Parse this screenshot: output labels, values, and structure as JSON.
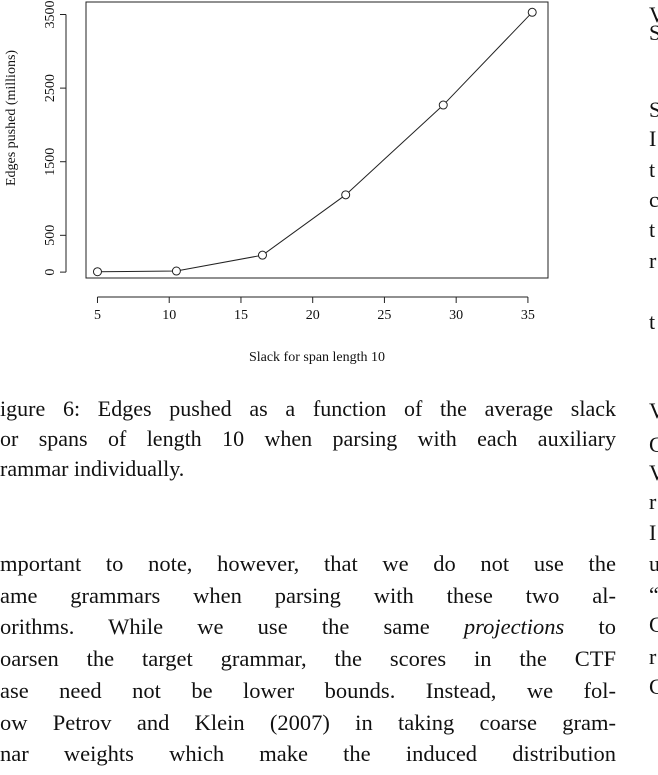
{
  "chart_data": {
    "type": "line",
    "xlabel": "Slack for span length 10",
    "ylabel": "Edges pushed (millions)",
    "x": [
      5,
      10.5,
      16.5,
      22.3,
      29.1,
      35.3
    ],
    "y": [
      5,
      15,
      230,
      1050,
      2270,
      3530
    ],
    "xlim": [
      4.2,
      36.4
    ],
    "ylim": [
      -80,
      3670
    ],
    "xticks": [
      "5",
      "10",
      "15",
      "20",
      "25",
      "30",
      "35"
    ],
    "xtick_values": [
      5,
      10,
      15,
      20,
      25,
      30,
      35
    ],
    "yticks": [
      "0",
      "500",
      "1500",
      "2500",
      "3500"
    ],
    "ytick_values": [
      0,
      500,
      1500,
      2500,
      3500
    ],
    "marker": "open-circle",
    "grid": false,
    "legend": "none"
  },
  "caption": {
    "lines": [
      "igure 6: Edges pushed as a function of the average slack",
      "or spans of length 10 when parsing with each auxiliary",
      "rammar individually."
    ]
  },
  "body": {
    "line1": "mportant to note, however, that we do not use the",
    "line2": "ame grammars when parsing with these two al-",
    "line3_a": "orithms.  While we use the same ",
    "line3_em": "projections",
    "line3_b": " to",
    "line4": "oarsen the target grammar, the scores in the CTF",
    "line5": "ase need not be lower bounds.  Instead, we fol-",
    "line6": "ow Petrov and Klein (2007) in taking coarse gram-",
    "line7": "nar weights which make the induced distribution"
  },
  "right_column": {
    "glyphs": [
      "V",
      "S",
      "S",
      "I",
      "t",
      "c",
      "t",
      "r",
      "t",
      "V",
      "C",
      "V",
      "r",
      "I",
      "u",
      "“",
      "C",
      "r",
      "C"
    ]
  }
}
